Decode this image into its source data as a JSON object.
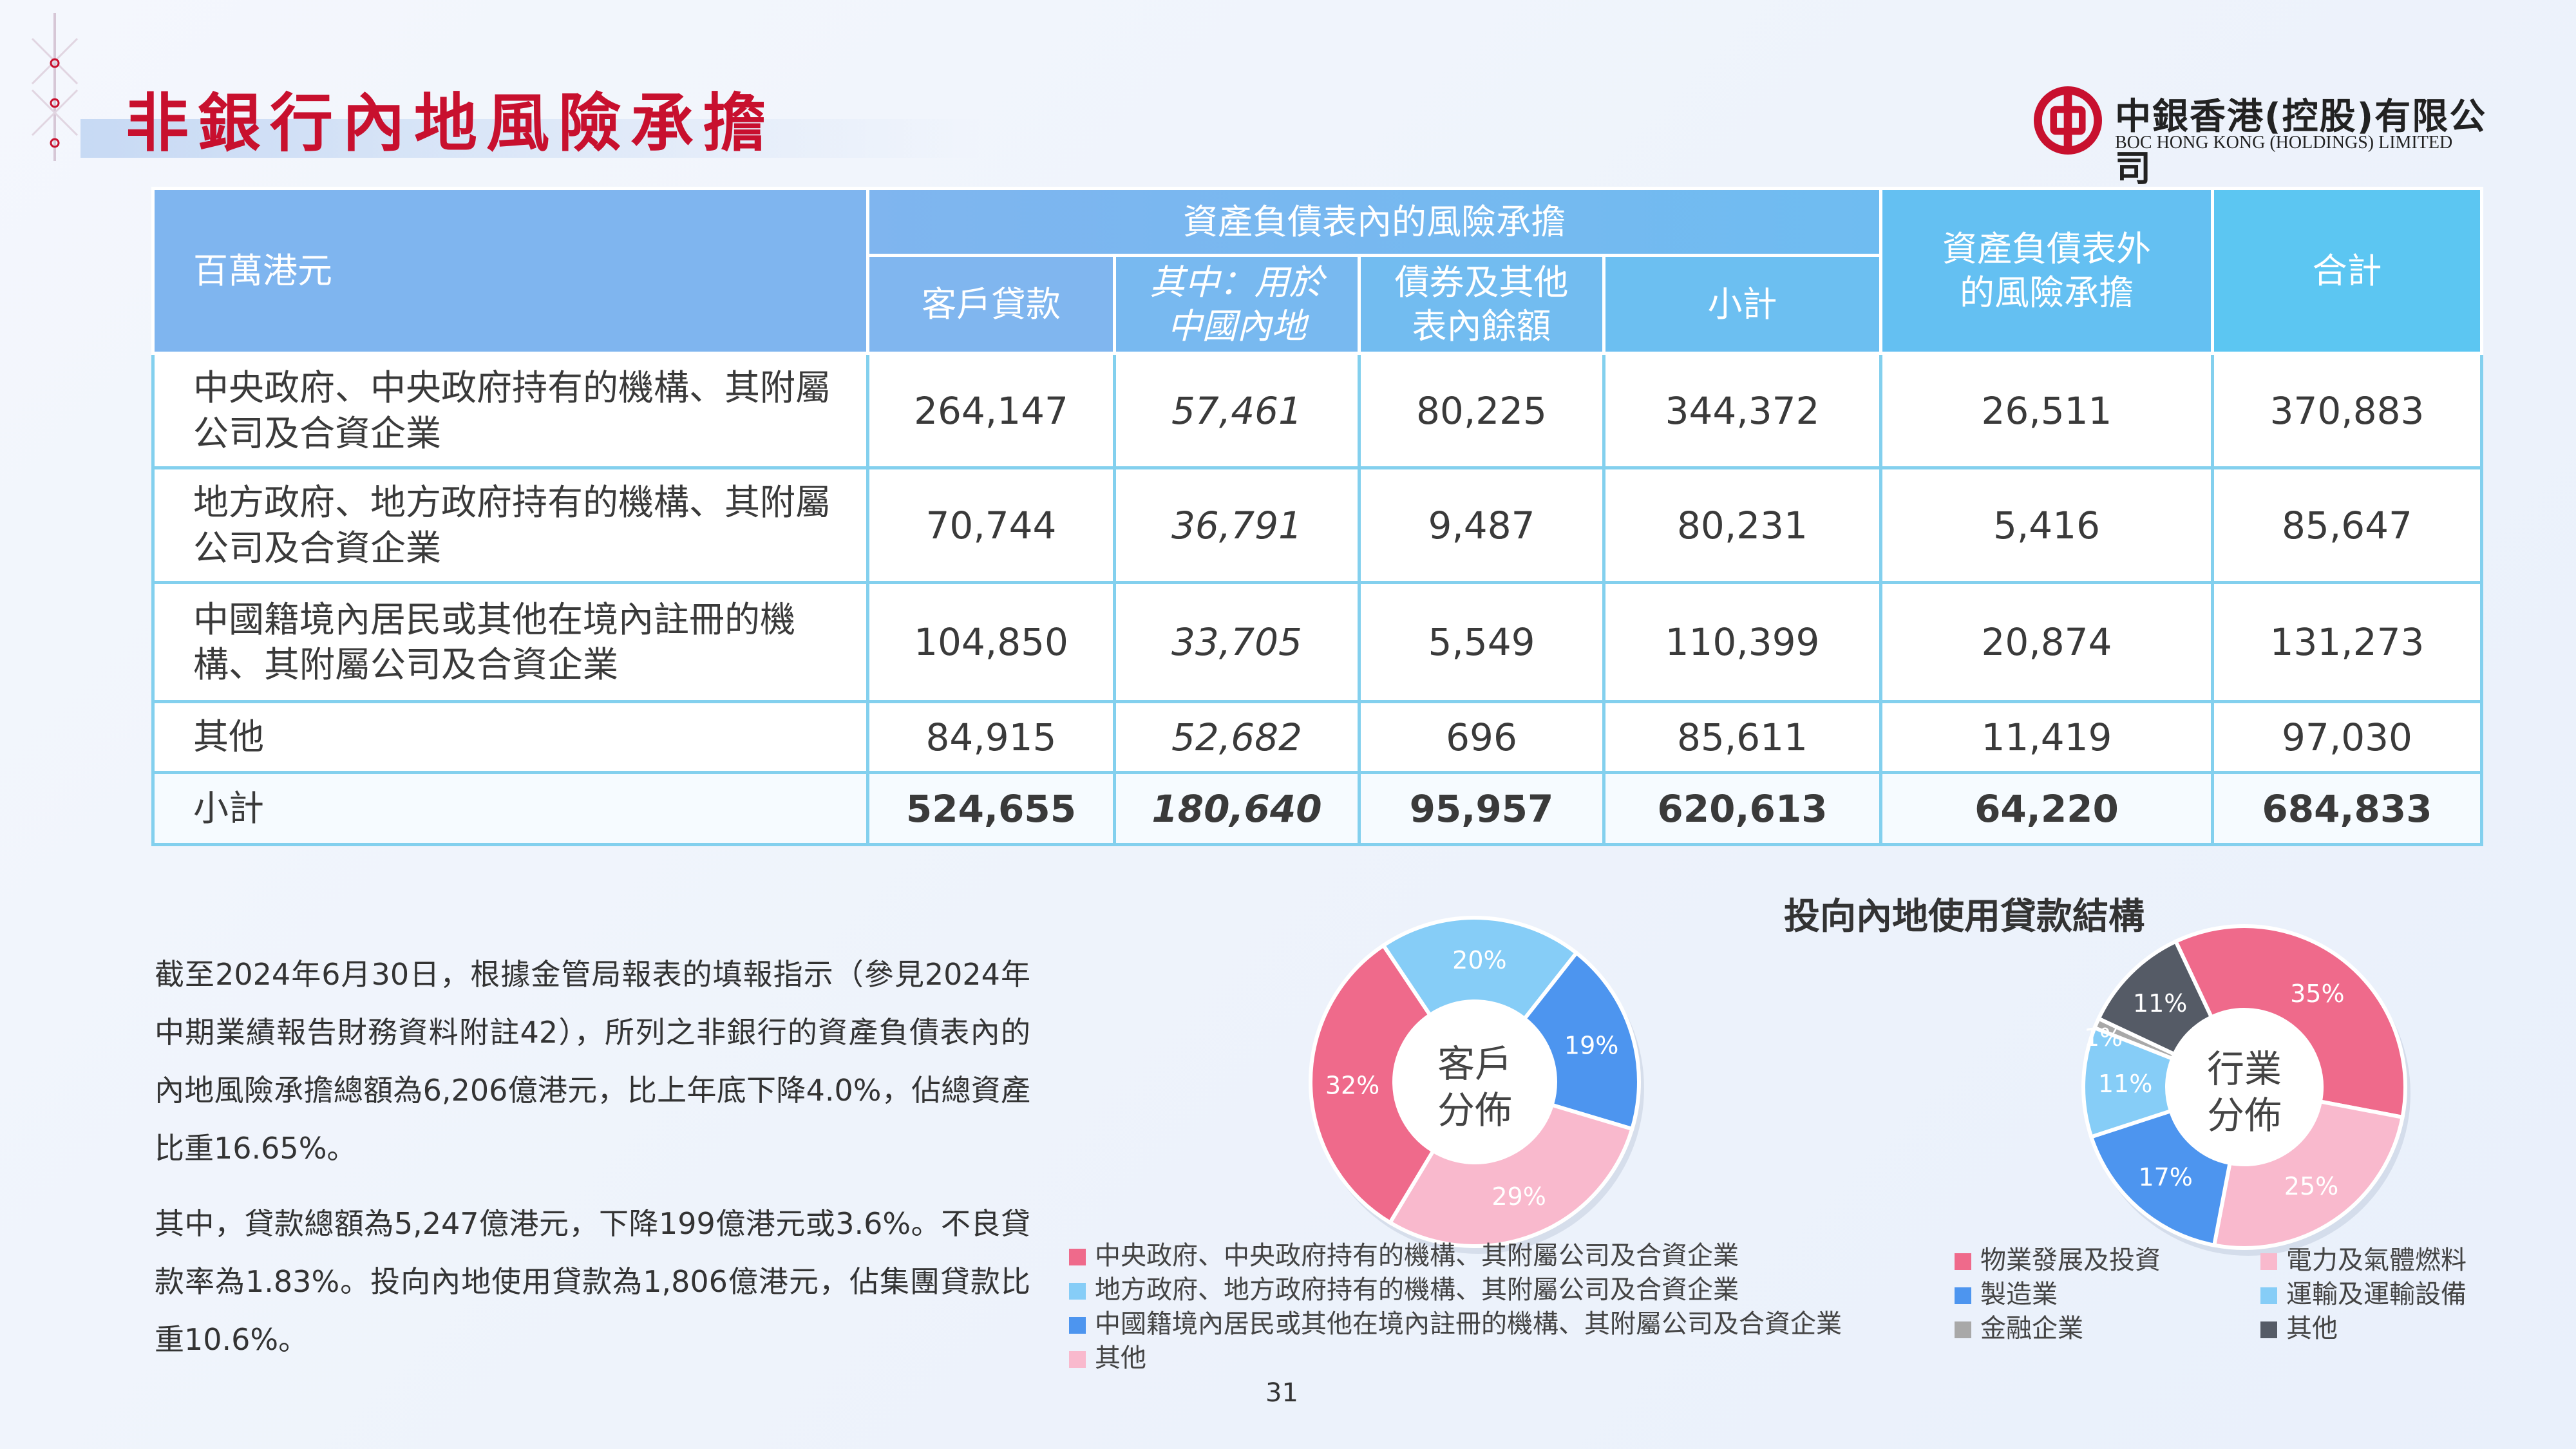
{
  "title": "非銀行內地風險承擔",
  "logo": {
    "cn": "中銀香港(控股)有限公司",
    "en": "BOC HONG KONG (HOLDINGS) LIMITED"
  },
  "table": {
    "unit_header": "百萬港元",
    "group_header": "資產負債表內的風險承擔",
    "headers": [
      "客戶貸款",
      "其中：用於中國內地",
      "債券及其他表內餘額",
      "小計",
      "資產負債表外的風險承擔",
      "合計"
    ],
    "rows": [
      {
        "label": "中央政府、中央政府持有的機構、其附屬公司及合資企業",
        "values": [
          "264,147",
          "57,461",
          "80,225",
          "344,372",
          "26,511",
          "370,883"
        ]
      },
      {
        "label": "地方政府、地方政府持有的機構、其附屬公司及合資企業",
        "values": [
          "70,744",
          "36,791",
          "9,487",
          "80,231",
          "5,416",
          "85,647"
        ]
      },
      {
        "label": "中國籍境內居民或其他在境內註冊的機構、其附屬公司及合資企業",
        "values": [
          "104,850",
          "33,705",
          "5,549",
          "110,399",
          "20,874",
          "131,273"
        ]
      },
      {
        "label": "其他",
        "values": [
          "84,915",
          "52,682",
          "696",
          "85,611",
          "11,419",
          "97,030"
        ]
      },
      {
        "label": "小計",
        "values": [
          "524,655",
          "180,640",
          "95,957",
          "620,613",
          "64,220",
          "684,833"
        ]
      }
    ]
  },
  "paragraphs": [
    "截至2024年6月30日，根據金管局報表的填報指示（參見2024年中期業績報告財務資料附註42），所列之非銀行的資產負債表內的內地風險承擔總額為6,206億港元，比上年底下降4.0%，佔總資產比重16.65%。",
    "其中，貸款總額為5,247億港元，下降199億港元或3.6%。不良貸款率為1.83%。投向內地使用貸款為1,806億港元，佔集團貸款比重10.6%。"
  ],
  "page_number": "31",
  "colors": {
    "title": "#c8102e",
    "header_light": "#7fb5ef",
    "header_dark": "#5cc6f2",
    "border": "#83d0ee"
  },
  "chart_data": [
    {
      "type": "pie",
      "title": "投向內地使用貸款結構",
      "center_label": "客戶分佈",
      "slices": [
        {
          "label": "中央政府、中央政府持有的機構、其附屬公司及合資企業",
          "value": 32,
          "display": "32%",
          "color": "#ef6a8b"
        },
        {
          "label": "地方政府、地方政府持有的機構、其附屬公司及合資企業",
          "value": 20,
          "display": "20%",
          "color": "#86cdf7"
        },
        {
          "label": "中國籍境內居民或其他在境內註冊的機構、其附屬公司及合資企業",
          "value": 19,
          "display": "19%",
          "color": "#4d95ef"
        },
        {
          "label": "其他",
          "value": 29,
          "display": "29%",
          "color": "#f9b9cd"
        }
      ]
    },
    {
      "type": "pie",
      "title": "",
      "center_label": "行業分佈",
      "slices": [
        {
          "label": "物業發展及投資",
          "value": 35,
          "display": "35%",
          "color": "#ef6a8b"
        },
        {
          "label": "電力及氣體燃料",
          "value": 25,
          "display": "25%",
          "color": "#f9b9cd"
        },
        {
          "label": "製造業",
          "value": 17,
          "display": "17%",
          "color": "#4d95ef"
        },
        {
          "label": "運輸及運輸設備",
          "value": 11,
          "display": "11%",
          "color": "#86cdf7"
        },
        {
          "label": "金融企業",
          "value": 1,
          "display": "1%",
          "color": "#a8a8a8"
        },
        {
          "label": "其他",
          "value": 11,
          "display": "11%",
          "color": "#555b66"
        }
      ]
    }
  ]
}
